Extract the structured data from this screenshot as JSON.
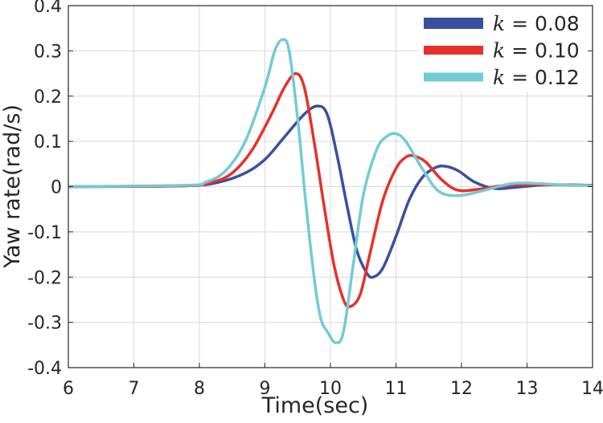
{
  "chart_data": {
    "type": "line",
    "xlabel": "Time(sec)",
    "ylabel": "Yaw rate(rad/s)",
    "xlim": [
      6,
      14
    ],
    "ylim": [
      -0.4,
      0.4
    ],
    "xticks": [
      "6",
      "7",
      "8",
      "9",
      "10",
      "11",
      "12",
      "13",
      "14"
    ],
    "yticks": [
      "-0.4",
      "-0.3",
      "-0.2",
      "-0.1",
      "0",
      "0.1",
      "0.2",
      "0.3",
      "0.4"
    ],
    "grid": true,
    "legend_position": "top-right",
    "series": [
      {
        "name": "k = 0.08",
        "var": "k",
        "val": "0.08",
        "color": "#3a4fa0",
        "points": [
          [
            6,
            0
          ],
          [
            7.8,
            0.002
          ],
          [
            8.3,
            0.01
          ],
          [
            8.7,
            0.03
          ],
          [
            9.0,
            0.06
          ],
          [
            9.3,
            0.11
          ],
          [
            9.6,
            0.16
          ],
          [
            9.8,
            0.178
          ],
          [
            9.95,
            0.16
          ],
          [
            10.1,
            0.07
          ],
          [
            10.25,
            -0.04
          ],
          [
            10.4,
            -0.14
          ],
          [
            10.55,
            -0.19
          ],
          [
            10.65,
            -0.2
          ],
          [
            10.8,
            -0.18
          ],
          [
            11.0,
            -0.11
          ],
          [
            11.2,
            -0.03
          ],
          [
            11.4,
            0.02
          ],
          [
            11.6,
            0.042
          ],
          [
            11.75,
            0.045
          ],
          [
            11.95,
            0.035
          ],
          [
            12.2,
            0.01
          ],
          [
            12.5,
            -0.004
          ],
          [
            12.8,
            -0.002
          ],
          [
            13.3,
            0.004
          ],
          [
            14,
            0.003
          ]
        ]
      },
      {
        "name": "k = 0.10",
        "var": "k",
        "val": "0.10",
        "color": "#e8302a",
        "points": [
          [
            6,
            0
          ],
          [
            7.8,
            0.002
          ],
          [
            8.2,
            0.01
          ],
          [
            8.5,
            0.03
          ],
          [
            8.8,
            0.08
          ],
          [
            9.1,
            0.16
          ],
          [
            9.3,
            0.22
          ],
          [
            9.47,
            0.25
          ],
          [
            9.6,
            0.22
          ],
          [
            9.75,
            0.1
          ],
          [
            9.9,
            -0.04
          ],
          [
            10.05,
            -0.17
          ],
          [
            10.2,
            -0.25
          ],
          [
            10.3,
            -0.265
          ],
          [
            10.45,
            -0.24
          ],
          [
            10.6,
            -0.15
          ],
          [
            10.8,
            -0.03
          ],
          [
            11.0,
            0.04
          ],
          [
            11.15,
            0.065
          ],
          [
            11.27,
            0.068
          ],
          [
            11.45,
            0.055
          ],
          [
            11.7,
            0.015
          ],
          [
            11.95,
            -0.008
          ],
          [
            12.3,
            -0.005
          ],
          [
            12.8,
            0.004
          ],
          [
            14,
            0.003
          ]
        ]
      },
      {
        "name": "k = 0.12",
        "var": "k",
        "val": "0.12",
        "color": "#72cbd5",
        "points": [
          [
            6,
            0
          ],
          [
            7.8,
            0.003
          ],
          [
            8.1,
            0.01
          ],
          [
            8.4,
            0.035
          ],
          [
            8.7,
            0.1
          ],
          [
            9.0,
            0.22
          ],
          [
            9.15,
            0.3
          ],
          [
            9.27,
            0.325
          ],
          [
            9.37,
            0.3
          ],
          [
            9.5,
            0.15
          ],
          [
            9.62,
            -0.03
          ],
          [
            9.75,
            -0.2
          ],
          [
            9.85,
            -0.29
          ],
          [
            9.95,
            -0.32
          ],
          [
            10.08,
            -0.345
          ],
          [
            10.2,
            -0.32
          ],
          [
            10.35,
            -0.17
          ],
          [
            10.5,
            -0.02
          ],
          [
            10.7,
            0.08
          ],
          [
            10.85,
            0.11
          ],
          [
            11.0,
            0.117
          ],
          [
            11.15,
            0.1
          ],
          [
            11.4,
            0.04
          ],
          [
            11.65,
            -0.01
          ],
          [
            11.95,
            -0.02
          ],
          [
            12.3,
            -0.01
          ],
          [
            12.7,
            0.005
          ],
          [
            13.0,
            0.008
          ],
          [
            13.5,
            0.004
          ],
          [
            14,
            0.002
          ]
        ]
      }
    ]
  }
}
